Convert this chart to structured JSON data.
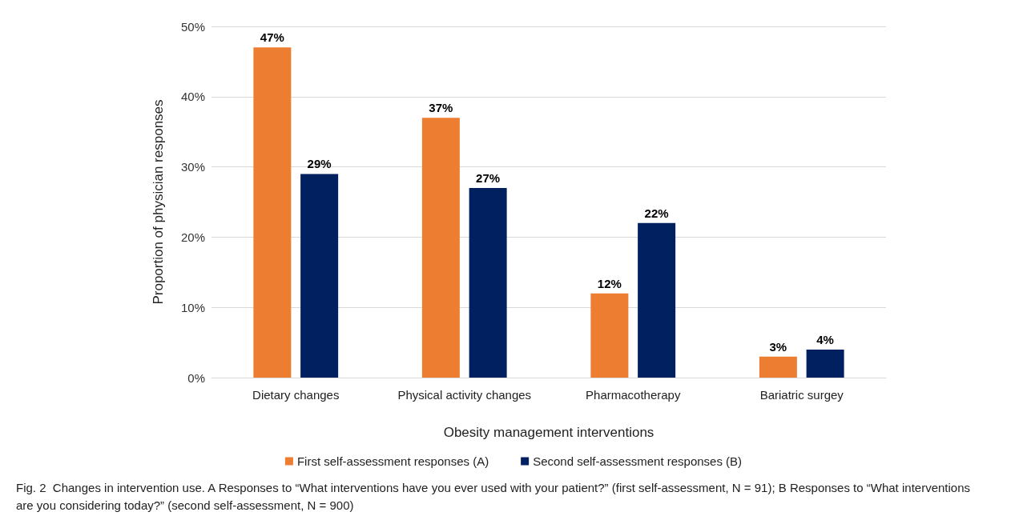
{
  "chart_data": {
    "type": "bar",
    "xlabel": "Obesity management interventions",
    "ylabel": "Proportion of physician responses",
    "categories": [
      "Dietary changes",
      "Physical activity changes",
      "Pharmacotherapy",
      "Bariatric surgey"
    ],
    "series": [
      {
        "name": "First self-assessment responses (A)",
        "color": "#ed7d31",
        "values": [
          47,
          37,
          12,
          3
        ],
        "value_labels": [
          "47%",
          "37%",
          "12%",
          "3%"
        ]
      },
      {
        "name": "Second self-assessment responses (B)",
        "color": "#002060",
        "values": [
          29,
          27,
          22,
          4
        ],
        "value_labels": [
          "29%",
          "27%",
          "22%",
          "4%"
        ]
      }
    ],
    "ylim": [
      0,
      50
    ],
    "yticks": [
      {
        "value": 0,
        "label": "0%"
      },
      {
        "value": 10,
        "label": "10%"
      },
      {
        "value": 20,
        "label": "20%"
      },
      {
        "value": 30,
        "label": "30%"
      },
      {
        "value": 40,
        "label": "40%"
      },
      {
        "value": 50,
        "label": "50%"
      }
    ],
    "grid": "y",
    "legend": "bottom",
    "annotations": [
      "Fig. 2  Changes in intervention use. A Responses to “What interventions have you ever used with your patient?” (first self-assessment, N = 91); B Responses to “What interventions are you considering today?” (second self-assessment, N = 900)"
    ]
  }
}
